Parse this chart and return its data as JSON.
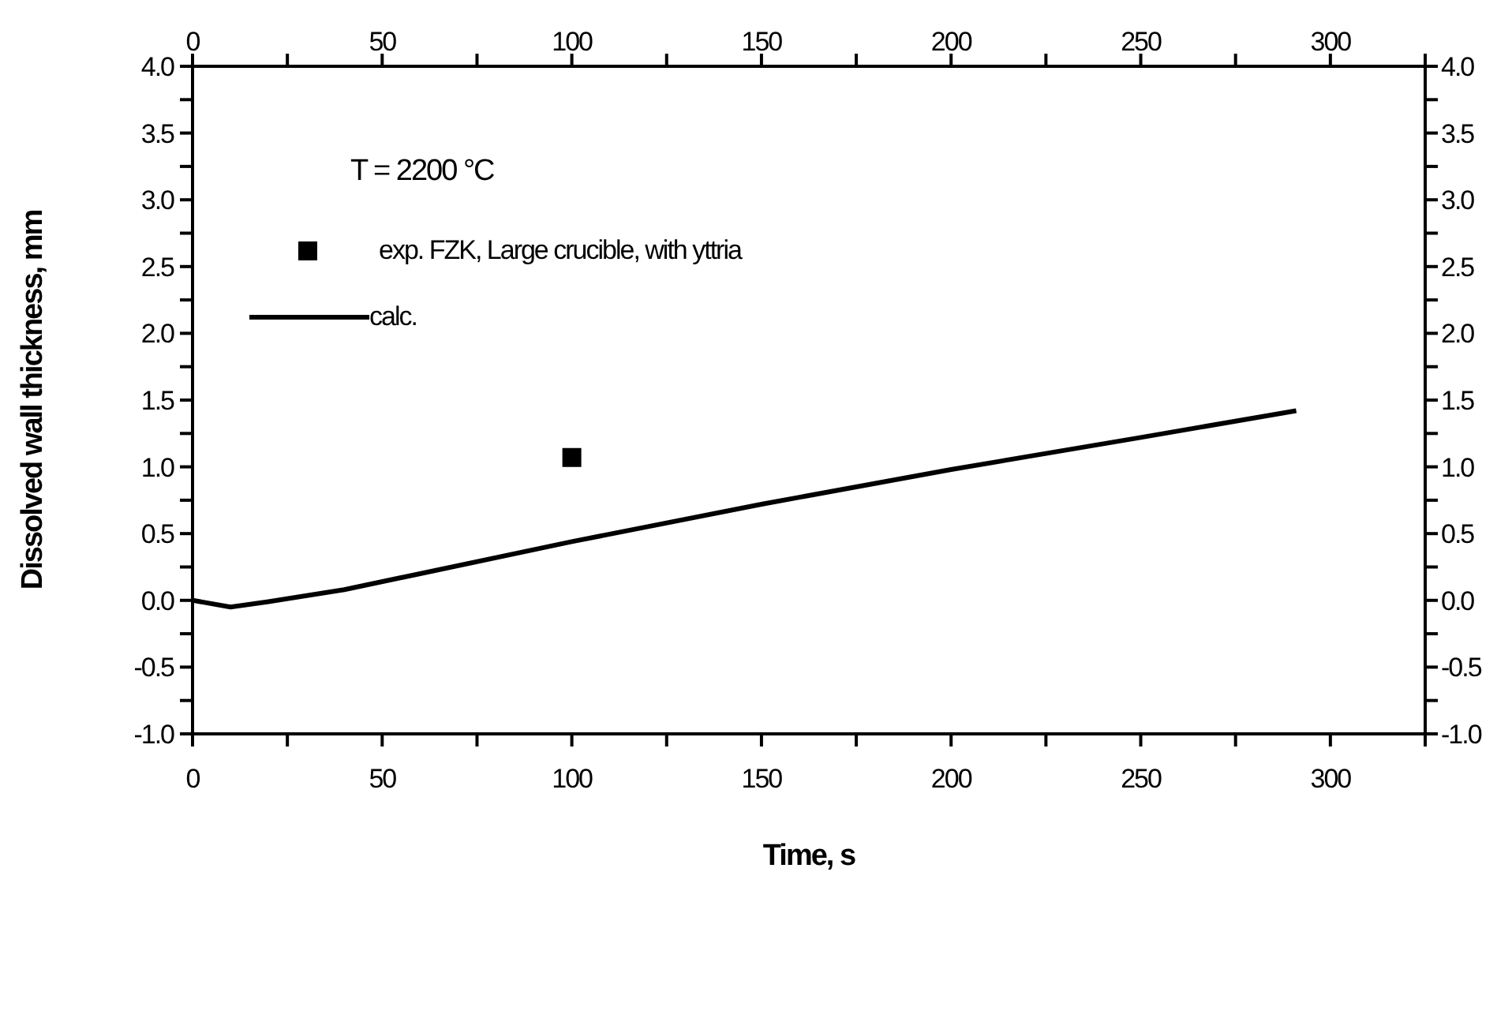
{
  "chart_data": {
    "type": "line",
    "xlabel": "Time, s",
    "ylabel": "Dissolved wall thickness, mm",
    "annotations": [
      "T = 2200 °C"
    ],
    "series": [
      {
        "name": "exp. FZK, Large crucible, with yttria",
        "type": "scatter",
        "marker": "square",
        "color": "#000000",
        "x": [
          100
        ],
        "values": [
          1.07
        ]
      },
      {
        "name": "calc.",
        "marker": "none",
        "color": "#000000",
        "x": [
          0,
          10,
          20,
          40,
          60,
          100,
          150,
          200,
          250,
          291
        ],
        "values": [
          0,
          -0.05,
          -0.01,
          0.08,
          0.2,
          0.44,
          0.72,
          0.98,
          1.22,
          1.42
        ]
      }
    ],
    "xlim": [
      0,
      325
    ],
    "xticks": [
      0,
      {
        "value": 25,
        "label": null
      },
      50,
      {
        "value": 75,
        "label": null
      },
      100,
      {
        "value": 125,
        "label": null
      },
      150,
      {
        "value": 175,
        "label": null
      },
      200,
      {
        "value": 225,
        "label": null
      },
      250,
      {
        "value": 275,
        "label": null
      },
      300,
      {
        "value": 325,
        "label": null
      }
    ],
    "x2lim": [
      0,
      325
    ],
    "x2ticks": [
      0,
      {
        "value": 25,
        "label": null
      },
      50,
      {
        "value": 75,
        "label": null
      },
      100,
      {
        "value": 125,
        "label": null
      },
      150,
      {
        "value": 175,
        "label": null
      },
      200,
      {
        "value": 225,
        "label": null
      },
      250,
      {
        "value": 275,
        "label": null
      },
      300,
      {
        "value": 325,
        "label": null
      }
    ],
    "ylim": [
      -1,
      4
    ],
    "yticks": [
      {
        "value": -1,
        "label": "-1.0"
      },
      {
        "value": -0.75,
        "label": null
      },
      {
        "value": -0.5,
        "label": "-0.5"
      },
      {
        "value": -0.25,
        "label": null
      },
      {
        "value": 0,
        "label": "0.0"
      },
      {
        "value": 0.25,
        "label": null
      },
      {
        "value": 0.5,
        "label": "0.5"
      },
      {
        "value": 0.75,
        "label": null
      },
      {
        "value": 1,
        "label": "1.0"
      },
      {
        "value": 1.25,
        "label": null
      },
      {
        "value": 1.5,
        "label": "1.5"
      },
      {
        "value": 1.75,
        "label": null
      },
      {
        "value": 2,
        "label": "2.0"
      },
      {
        "value": 2.25,
        "label": null
      },
      {
        "value": 2.5,
        "label": "2.5"
      },
      {
        "value": 2.75,
        "label": null
      },
      {
        "value": 3,
        "label": "3.0"
      },
      {
        "value": 3.25,
        "label": null
      },
      {
        "value": 3.5,
        "label": "3.5"
      },
      {
        "value": 3.75,
        "label": null
      },
      {
        "value": 4,
        "label": "4.0"
      }
    ],
    "y2lim": [
      -1,
      4
    ],
    "y2ticks": [
      {
        "value": -1,
        "label": "-1.0"
      },
      {
        "value": -0.75,
        "label": null
      },
      {
        "value": -0.5,
        "label": "-0.5"
      },
      {
        "value": -0.25,
        "label": null
      },
      {
        "value": 0,
        "label": "0.0"
      },
      {
        "value": 0.25,
        "label": null
      },
      {
        "value": 0.5,
        "label": "0.5"
      },
      {
        "value": 0.75,
        "label": null
      },
      {
        "value": 1,
        "label": "1.0"
      },
      {
        "value": 1.25,
        "label": null
      },
      {
        "value": 1.5,
        "label": "1.5"
      },
      {
        "value": 1.75,
        "label": null
      },
      {
        "value": 2,
        "label": "2.0"
      },
      {
        "value": 2.25,
        "label": null
      },
      {
        "value": 2.5,
        "label": "2.5"
      },
      {
        "value": 2.75,
        "label": null
      },
      {
        "value": 3,
        "label": "3.0"
      },
      {
        "value": 3.25,
        "label": null
      },
      {
        "value": 3.5,
        "label": "3.5"
      },
      {
        "value": 3.75,
        "label": null
      },
      {
        "value": 4,
        "label": "4.0"
      }
    ],
    "grid": false,
    "legend": "top left"
  }
}
